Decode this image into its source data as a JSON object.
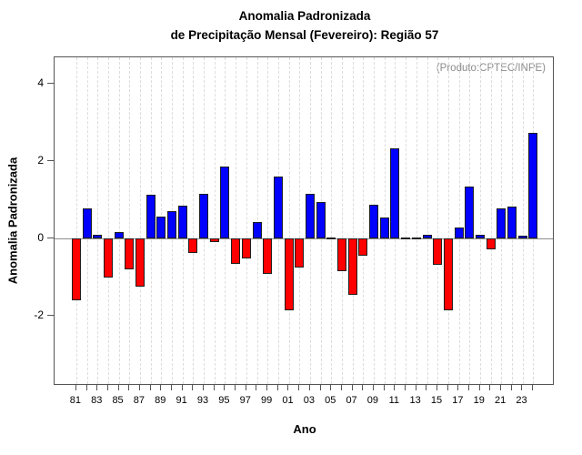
{
  "title": {
    "line1": "Anomalia Padronizada",
    "line2": "de Precipitação Mensal (Fevereiro): Região 57"
  },
  "annotation": "(Produto:CPTEC/INPE)",
  "axes": {
    "y_label": "Anomalia Padronizada",
    "x_label": "Ano",
    "y_ticks": [
      4,
      2,
      0,
      -2
    ]
  },
  "colors": {
    "positive_bar": "#0000ff",
    "negative_bar": "#ff0000",
    "bar_border": "#1f1f1f",
    "zero_line": "#8c8c8c",
    "gridline": "#dcdcdc",
    "annotation_text": "#8c8c8c"
  },
  "chart_data": {
    "type": "bar",
    "title": "Anomalia Padronizada de Precipitação Mensal (Fevereiro): Região 57",
    "xlabel": "Ano",
    "ylabel": "Anomalia Padronizada",
    "ylim": [
      -3.8,
      4.68
    ],
    "grid": "vertical-dashed",
    "categories": [
      "81",
      "82",
      "83",
      "84",
      "85",
      "86",
      "87",
      "88",
      "89",
      "90",
      "91",
      "92",
      "93",
      "94",
      "95",
      "96",
      "97",
      "98",
      "99",
      "00",
      "01",
      "02",
      "03",
      "04",
      "05",
      "06",
      "07",
      "08",
      "09",
      "10",
      "11",
      "12",
      "13",
      "14",
      "15",
      "16",
      "17",
      "18",
      "19",
      "20",
      "21",
      "22",
      "23",
      "24"
    ],
    "labeled_ticks": [
      "81",
      "83",
      "85",
      "87",
      "89",
      "91",
      "93",
      "95",
      "97",
      "99",
      "01",
      "03",
      "05",
      "07",
      "09",
      "11",
      "13",
      "15",
      "17",
      "19",
      "21",
      "23"
    ],
    "values": [
      -1.6,
      0.78,
      0.1,
      -1.0,
      0.17,
      -0.8,
      -1.24,
      1.13,
      0.57,
      0.7,
      0.86,
      -0.38,
      1.15,
      -0.1,
      1.87,
      -0.65,
      -0.52,
      0.43,
      -0.92,
      1.6,
      -1.85,
      -0.75,
      1.16,
      0.94,
      0.02,
      -0.85,
      -1.45,
      -0.43,
      0.87,
      0.55,
      2.32,
      0.02,
      0.03,
      0.1,
      -0.67,
      -1.84,
      0.28,
      1.35,
      0.1,
      -0.28,
      0.78,
      0.82,
      0.08,
      2.74
    ]
  }
}
